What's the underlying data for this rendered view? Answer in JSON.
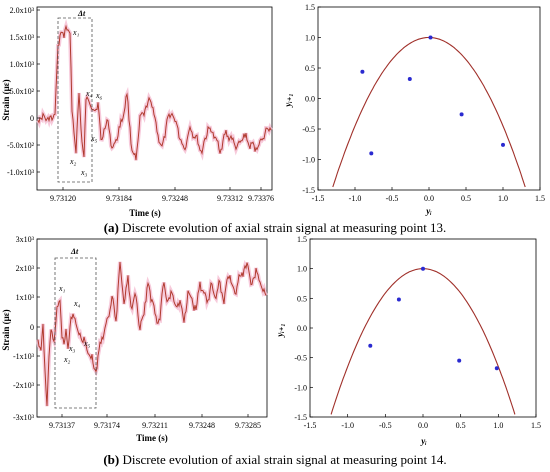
{
  "chart_data": [
    {
      "type": "line",
      "panel": "a-left",
      "xlabel": "Time (s)",
      "ylabel": "Strain (με)",
      "x_ticks": [
        "9.73120",
        "9.73184",
        "9.73248",
        "9.73312",
        "9.73376"
      ],
      "y_ticks": [
        "-1.0x10³",
        "-5.0x10²",
        "0",
        "5.0x10²",
        "1.0x10³",
        "1.5x10³",
        "2.0x10³"
      ],
      "ylim": [
        -1400,
        2200
      ],
      "series_color": "#b03a2e",
      "band_color": "#f4b8cf",
      "window_label": "Δt",
      "annotations": [
        "x₁",
        "x₂",
        "x₃",
        "x₄",
        "x₅",
        "x₆"
      ]
    },
    {
      "type": "scatter",
      "panel": "a-right",
      "xlabel": "yᵢ",
      "ylabel": "yᵢ₊₁",
      "xlim": [
        -1.5,
        1.5
      ],
      "ylim": [
        -1.5,
        1.5
      ],
      "x_ticks": [
        "-1.5",
        "-1.0",
        "-0.5",
        "0.0",
        "0.5",
        "1.0",
        "1.5"
      ],
      "y_ticks": [
        "-1.5",
        "-1.0",
        "-0.5",
        "0.0",
        "0.5",
        "1.0",
        "1.5"
      ],
      "points": [
        [
          -0.9,
          0.44
        ],
        [
          -0.78,
          -0.9
        ],
        [
          -0.26,
          0.32
        ],
        [
          0.02,
          1.0
        ],
        [
          0.44,
          -0.26
        ],
        [
          1.0,
          -0.76
        ]
      ],
      "curve": "y = 1 - 1.45 x^2",
      "point_color": "#2a2ad0",
      "curve_color": "#a0302a"
    },
    {
      "type": "line",
      "panel": "b-left",
      "xlabel": "Time (s)",
      "ylabel": "Strain (με)",
      "x_ticks": [
        "9.73137",
        "9.73174",
        "9.73211",
        "9.73248",
        "9.73285"
      ],
      "y_ticks": [
        "-3x10³",
        "-2x10³",
        "-1x10³",
        "0",
        "1x10³",
        "2x10³",
        "3x10³"
      ],
      "ylim": [
        -3000,
        3000
      ],
      "series_color": "#b03a2e",
      "band_color": "#f4b8cf",
      "window_label": "Δt",
      "annotations": [
        "x₁",
        "x₂",
        "x₃",
        "x₄",
        "x₅"
      ]
    },
    {
      "type": "scatter",
      "panel": "b-right",
      "xlabel": "yᵢ",
      "ylabel": "yᵢ₊₁",
      "xlim": [
        -1.5,
        1.5
      ],
      "ylim": [
        -1.5,
        1.5
      ],
      "x_ticks": [
        "-1.5",
        "-1.0",
        "-0.5",
        "0.0",
        "0.5",
        "1.0",
        "1.5"
      ],
      "y_ticks": [
        "-1.5",
        "-1.0",
        "-0.5",
        "0.0",
        "0.5",
        "1.0",
        "1.5"
      ],
      "points": [
        [
          -0.7,
          -0.3
        ],
        [
          -0.32,
          0.48
        ],
        [
          0.0,
          1.0
        ],
        [
          0.48,
          -0.55
        ],
        [
          0.98,
          -0.68
        ]
      ],
      "curve": "y = 1 - 1.65 x^2",
      "point_color": "#2a2ad0",
      "curve_color": "#a0302a"
    }
  ],
  "captions": {
    "a_prefix": "(a)",
    "a_text": " Discrete evolution of axial strain signal at measuring point 13.",
    "b_prefix": "(b)",
    "b_text": " Discrete evolution of axial strain signal at measuring point 14."
  }
}
